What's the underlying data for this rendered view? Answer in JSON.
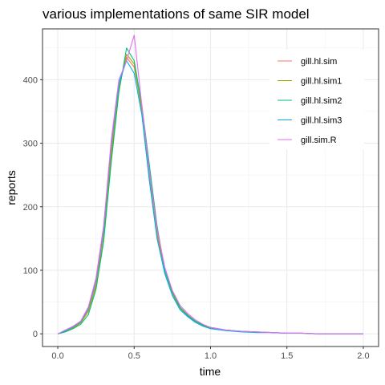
{
  "chart_data": {
    "type": "line",
    "title": "various implementations of same SIR model",
    "xlabel": "time",
    "ylabel": "reports",
    "xlim": [
      -0.1,
      2.1
    ],
    "ylim": [
      -20,
      480
    ],
    "x_ticks": [
      0.0,
      0.5,
      1.0,
      1.5,
      2.0
    ],
    "x_tick_labels": [
      "0.0",
      "0.5",
      "1.0",
      "1.5",
      "2.0"
    ],
    "y_ticks": [
      0,
      100,
      200,
      300,
      400
    ],
    "y_tick_labels": [
      "0",
      "100",
      "200",
      "300",
      "400"
    ],
    "grid": true,
    "legend_position": "top-right",
    "series": [
      {
        "name": "gill.hl.sim",
        "color": "#F8766D",
        "x": [
          0,
          0.05,
          0.1,
          0.15,
          0.2,
          0.25,
          0.3,
          0.35,
          0.4,
          0.45,
          0.5,
          0.55,
          0.6,
          0.65,
          0.7,
          0.75,
          0.8,
          0.85,
          0.9,
          0.95,
          1.0,
          1.1,
          1.2,
          1.3,
          1.4,
          1.5,
          1.6,
          1.7,
          1.8,
          1.9,
          2.0
        ],
        "y": [
          0,
          5,
          10,
          18,
          38,
          80,
          160,
          290,
          390,
          435,
          420,
          355,
          250,
          160,
          100,
          65,
          42,
          30,
          20,
          14,
          10,
          6,
          4,
          3,
          2,
          1,
          1,
          0,
          0,
          0,
          0
        ]
      },
      {
        "name": "gill.hl.sim1",
        "color": "#A3A500",
        "x": [
          0,
          0.05,
          0.1,
          0.15,
          0.2,
          0.25,
          0.3,
          0.35,
          0.4,
          0.45,
          0.5,
          0.55,
          0.6,
          0.65,
          0.7,
          0.75,
          0.8,
          0.85,
          0.9,
          0.95,
          1.0,
          1.1,
          1.2,
          1.3,
          1.4,
          1.5,
          1.6,
          1.7,
          1.8,
          1.9,
          2.0
        ],
        "y": [
          0,
          4,
          9,
          17,
          35,
          75,
          150,
          280,
          385,
          440,
          425,
          350,
          245,
          155,
          95,
          62,
          40,
          28,
          19,
          13,
          9,
          5,
          4,
          2,
          2,
          1,
          1,
          0,
          0,
          0,
          0
        ]
      },
      {
        "name": "gill.hl.sim2",
        "color": "#00BF7D",
        "x": [
          0,
          0.05,
          0.1,
          0.15,
          0.2,
          0.25,
          0.3,
          0.35,
          0.4,
          0.45,
          0.5,
          0.55,
          0.6,
          0.65,
          0.7,
          0.75,
          0.8,
          0.85,
          0.9,
          0.95,
          1.0,
          1.1,
          1.2,
          1.3,
          1.4,
          1.5,
          1.6,
          1.7,
          1.8,
          1.9,
          2.0
        ],
        "y": [
          0,
          3,
          8,
          15,
          30,
          70,
          145,
          270,
          380,
          450,
          430,
          360,
          265,
          170,
          100,
          66,
          42,
          29,
          20,
          14,
          10,
          6,
          4,
          3,
          2,
          1,
          1,
          0,
          0,
          0,
          0
        ]
      },
      {
        "name": "gill.hl.sim3",
        "color": "#00B0F6",
        "x": [
          0,
          0.05,
          0.1,
          0.15,
          0.2,
          0.25,
          0.3,
          0.35,
          0.4,
          0.45,
          0.5,
          0.55,
          0.6,
          0.65,
          0.7,
          0.75,
          0.8,
          0.85,
          0.9,
          0.95,
          1.0,
          1.1,
          1.2,
          1.3,
          1.4,
          1.5,
          1.6,
          1.7,
          1.8,
          1.9,
          2.0
        ],
        "y": [
          0,
          5,
          11,
          19,
          40,
          85,
          165,
          300,
          395,
          430,
          410,
          345,
          240,
          150,
          95,
          60,
          38,
          27,
          18,
          12,
          8,
          5,
          3,
          2,
          2,
          1,
          1,
          0,
          0,
          0,
          0
        ]
      },
      {
        "name": "gill.sim.R",
        "color": "#E76BF3",
        "x": [
          0,
          0.05,
          0.1,
          0.15,
          0.2,
          0.25,
          0.3,
          0.35,
          0.4,
          0.45,
          0.5,
          0.55,
          0.6,
          0.65,
          0.7,
          0.75,
          0.8,
          0.85,
          0.9,
          0.95,
          1.0,
          1.1,
          1.2,
          1.3,
          1.4,
          1.5,
          1.6,
          1.7,
          1.8,
          1.9,
          2.0
        ],
        "y": [
          0,
          6,
          12,
          20,
          42,
          88,
          170,
          305,
          400,
          430,
          470,
          360,
          255,
          165,
          105,
          68,
          45,
          32,
          22,
          15,
          10,
          6,
          4,
          3,
          2,
          1,
          1,
          0,
          0,
          0,
          0
        ]
      }
    ]
  }
}
